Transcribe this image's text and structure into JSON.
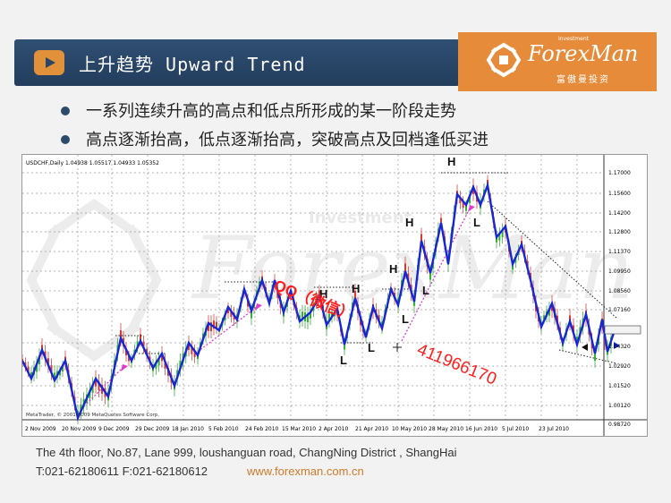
{
  "header": {
    "title": "上升趋势 Upward Trend",
    "logo_en": "ForexMan",
    "logo_en_small": "Investment",
    "logo_cn": "富傲曼投资",
    "accent_color": "#e58b3a",
    "bar_color": "#2a4666"
  },
  "bullets": [
    "一系列连续升高的高点和低点所形成的某一阶段走势",
    "高点逐渐抬高，低点逐渐抬高，突破高点及回档逢低买进"
  ],
  "chart": {
    "symbol_line": "USDCHF,Daily  1.04938 1.05517 1.04933 1.05352",
    "copyright": "MetaTrader, © 2001-2009 MetaQuotes Software Corp.",
    "watermark": "Investment",
    "overlay_qq": "QQ（微信）",
    "overlay_number": "411966170",
    "price_ticks": [
      "1.17000",
      "1.15600",
      "1.14200",
      "1.12800",
      "1.11370",
      "1.09950",
      "1.08560",
      "1.07160",
      "1.05352",
      "1.04320",
      "1.02920",
      "1.01520",
      "1.00120",
      "0.98720"
    ],
    "date_ticks": [
      "2 Nov 2009",
      "20 Nov 2009",
      "9 Dec 2009",
      "29 Dec 2009",
      "18 Jan 2010",
      "5 Feb 2010",
      "24 Feb 2010",
      "15 Mar 2010",
      "2 Apr 2010",
      "21 Apr 2010",
      "10 May 2010",
      "28 May 2010",
      "16 Jun 2010",
      "5 Jul 2010",
      "23 Jul 2010"
    ],
    "pivot_labels": [
      "H",
      "H",
      "H",
      "H",
      "H",
      "L",
      "L",
      "L",
      "L",
      "L"
    ]
  },
  "footer": {
    "address": "The 4th floor, No.87, Lane 999, loushanguan road, ChangNing District , ShangHai",
    "tel": "T:021-62180611  F:021-62180612",
    "website": "www.forexman.com.cn"
  }
}
